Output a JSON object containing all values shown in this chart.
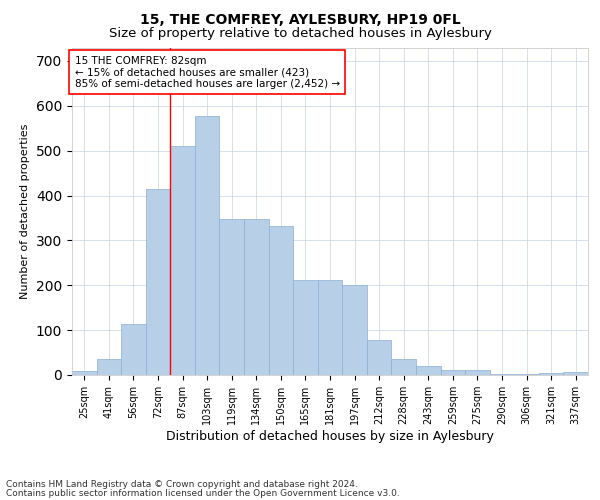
{
  "title1": "15, THE COMFREY, AYLESBURY, HP19 0FL",
  "title2": "Size of property relative to detached houses in Aylesbury",
  "xlabel": "Distribution of detached houses by size in Aylesbury",
  "ylabel": "Number of detached properties",
  "categories": [
    "25sqm",
    "41sqm",
    "56sqm",
    "72sqm",
    "87sqm",
    "103sqm",
    "119sqm",
    "134sqm",
    "150sqm",
    "165sqm",
    "181sqm",
    "197sqm",
    "212sqm",
    "228sqm",
    "243sqm",
    "259sqm",
    "275sqm",
    "290sqm",
    "306sqm",
    "321sqm",
    "337sqm"
  ],
  "values": [
    8,
    35,
    113,
    415,
    510,
    577,
    348,
    348,
    333,
    212,
    211,
    200,
    78,
    35,
    20,
    12,
    12,
    2,
    2,
    5,
    7
  ],
  "bar_color": "#b8cfe8",
  "bar_edge_color": "#8aafd4",
  "grid_color": "#d0daea",
  "vline_x_index": 4,
  "vline_color": "red",
  "annotation_text": "15 THE COMFREY: 82sqm\n← 15% of detached houses are smaller (423)\n85% of semi-detached houses are larger (2,452) →",
  "annotation_box_color": "white",
  "annotation_box_edgecolor": "red",
  "footer1": "Contains HM Land Registry data © Crown copyright and database right 2024.",
  "footer2": "Contains public sector information licensed under the Open Government Licence v3.0.",
  "ylim": [
    0,
    730
  ],
  "title1_fontsize": 10,
  "title2_fontsize": 9.5,
  "xlabel_fontsize": 9,
  "ylabel_fontsize": 8,
  "tick_fontsize": 7,
  "annotation_fontsize": 7.5,
  "footer_fontsize": 6.5
}
